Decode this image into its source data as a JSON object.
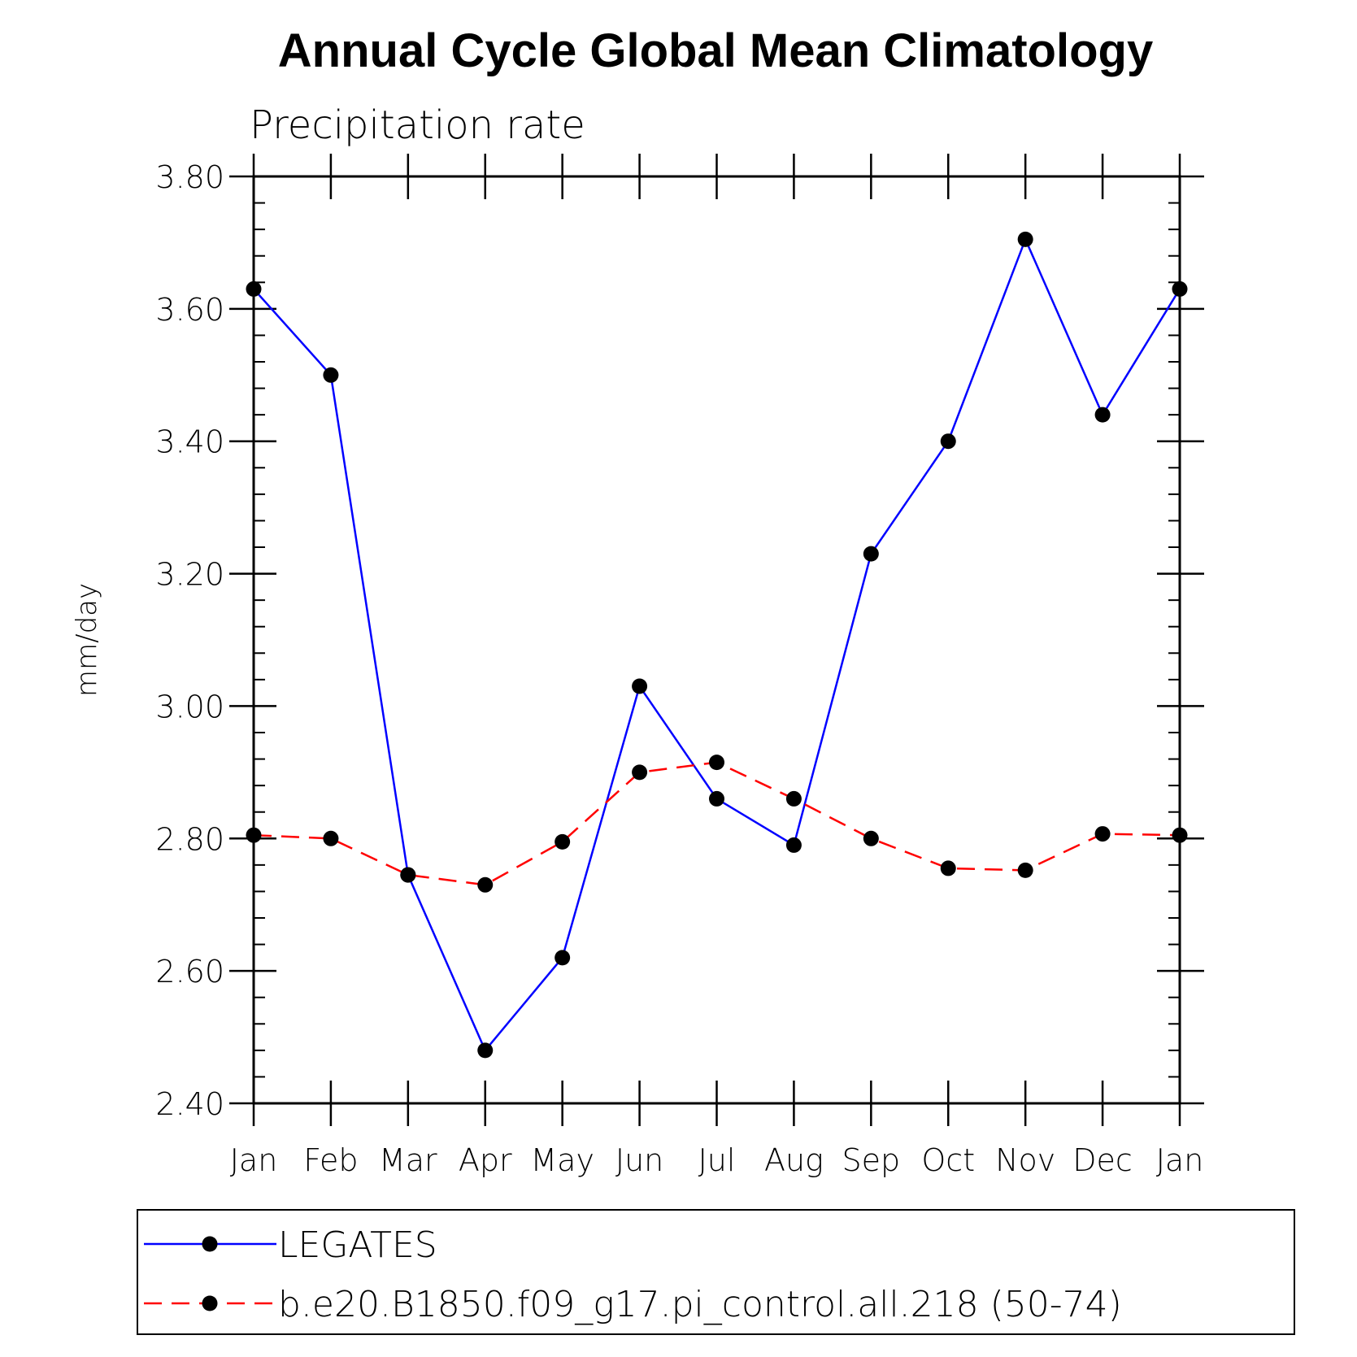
{
  "chart_data": {
    "type": "line",
    "title": "Annual Cycle Global Mean Climatology",
    "subtitle": "Precipitation rate",
    "ylabel": "mm/day",
    "xlabel": "",
    "categories": [
      "Jan",
      "Feb",
      "Mar",
      "Apr",
      "May",
      "Jun",
      "Jul",
      "Aug",
      "Sep",
      "Oct",
      "Nov",
      "Dec",
      "Jan"
    ],
    "ylim": [
      2.4,
      3.8
    ],
    "yticks": [
      "2.40",
      "2.60",
      "2.80",
      "3.00",
      "3.20",
      "3.40",
      "3.60",
      "3.80"
    ],
    "grid": false,
    "legend_position": "bottom",
    "series": [
      {
        "name": "LEGATES",
        "color": "#0000ff",
        "dash": "solid",
        "marker": "circle",
        "values": [
          3.63,
          3.5,
          2.745,
          2.48,
          2.62,
          3.03,
          2.86,
          2.79,
          3.23,
          3.4,
          3.705,
          3.44,
          3.63
        ]
      },
      {
        "name": "b.e20.B1850.f09_g17.pi_control.all.218 (50-74)",
        "color": "#ff0000",
        "dash": "dashed",
        "marker": "circle",
        "values": [
          2.805,
          2.8,
          2.745,
          2.73,
          2.795,
          2.9,
          2.915,
          2.86,
          2.8,
          2.755,
          2.752,
          2.807,
          2.805
        ]
      }
    ]
  }
}
